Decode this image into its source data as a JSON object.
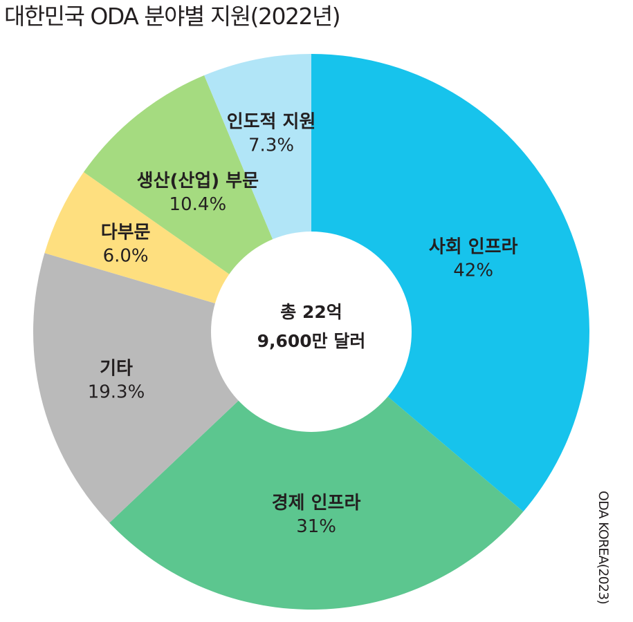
{
  "chart_data": {
    "type": "pie",
    "title": "대한민국 ODA 분야별 지원(2022년)",
    "center_label": [
      "총 22억",
      "9,600만 달러"
    ],
    "slices": [
      {
        "label": "사회 인프라",
        "value": 42,
        "value_label": "42%",
        "color": "#17c3ec"
      },
      {
        "label": "경제 인프라",
        "value": 31,
        "value_label": "31%",
        "color": "#5cc68f"
      },
      {
        "label": "기타",
        "value": 19.3,
        "value_label": "19.3%",
        "color": "#bababa"
      },
      {
        "label": "다부문",
        "value": 6.0,
        "value_label": "6.0%",
        "color": "#fedf7f"
      },
      {
        "label": "생산(산업) 부문",
        "value": 10.4,
        "value_label": "10.4%",
        "color": "#a5db80"
      },
      {
        "label": "인도적 지원",
        "value": 7.3,
        "value_label": "7.3%",
        "color": "#b1e5f7"
      }
    ],
    "source": "ODA KOREA(2023)"
  }
}
